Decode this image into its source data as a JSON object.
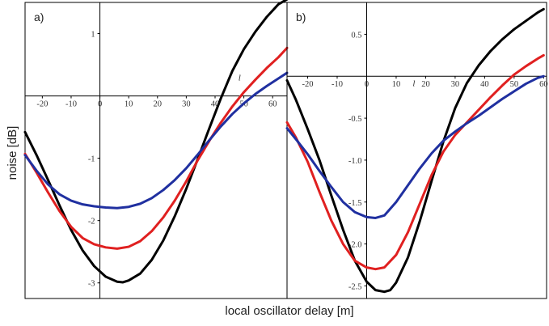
{
  "figure": {
    "ylabel": "noise [dB]",
    "xlabel": "local oscillator delay [m]"
  },
  "chart_data": [
    {
      "type": "line",
      "panel_label": "a)",
      "axis_variable": "l",
      "xlim": [
        -26,
        65
      ],
      "ylim": [
        -3.25,
        1.5
      ],
      "xticks": [
        -20,
        -10,
        0,
        10,
        20,
        30,
        40,
        50,
        60
      ],
      "xtick_labels": [
        "-20",
        "-10",
        "0",
        "10",
        "20",
        "30",
        "40",
        "50",
        "60"
      ],
      "yticks": [
        1,
        -1,
        -2,
        -3
      ],
      "ytick_labels": [
        "1",
        "-1",
        "-2",
        "-3"
      ],
      "grid": false,
      "series": [
        {
          "color": "#000000",
          "x": [
            -26,
            -22,
            -18,
            -14,
            -10,
            -6,
            -2,
            2,
            6,
            8,
            10,
            14,
            18,
            22,
            26,
            30,
            34,
            38,
            42,
            46,
            50,
            54,
            58,
            62,
            65
          ],
          "y": [
            -0.58,
            -0.95,
            -1.35,
            -1.76,
            -2.15,
            -2.48,
            -2.73,
            -2.9,
            -2.98,
            -2.99,
            -2.96,
            -2.85,
            -2.63,
            -2.32,
            -1.93,
            -1.49,
            -1.01,
            -0.52,
            -0.04,
            0.4,
            0.75,
            1.03,
            1.27,
            1.47,
            1.55
          ]
        },
        {
          "color": "#e02020",
          "x": [
            -26,
            -22,
            -18,
            -14,
            -10,
            -6,
            -2,
            2,
            6,
            10,
            14,
            18,
            22,
            26,
            30,
            34,
            38,
            42,
            46,
            50,
            54,
            58,
            62,
            65
          ],
          "y": [
            -0.93,
            -1.23,
            -1.55,
            -1.85,
            -2.1,
            -2.28,
            -2.38,
            -2.43,
            -2.45,
            -2.42,
            -2.33,
            -2.17,
            -1.95,
            -1.68,
            -1.37,
            -1.03,
            -0.72,
            -0.43,
            -0.17,
            0.06,
            0.26,
            0.45,
            0.62,
            0.77
          ]
        },
        {
          "color": "#2030a0",
          "x": [
            -26,
            -22,
            -18,
            -14,
            -10,
            -6,
            -2,
            2,
            6,
            10,
            14,
            18,
            22,
            26,
            30,
            34,
            38,
            42,
            46,
            50,
            54,
            58,
            62,
            65
          ],
          "y": [
            -0.95,
            -1.2,
            -1.42,
            -1.58,
            -1.68,
            -1.74,
            -1.77,
            -1.79,
            -1.8,
            -1.78,
            -1.73,
            -1.64,
            -1.51,
            -1.35,
            -1.16,
            -0.94,
            -0.71,
            -0.49,
            -0.29,
            -0.12,
            0.03,
            0.16,
            0.28,
            0.37
          ]
        }
      ]
    },
    {
      "type": "line",
      "panel_label": "b)",
      "axis_variable": "l",
      "xlim": [
        -27,
        61
      ],
      "ylim": [
        -2.65,
        0.88
      ],
      "xticks": [
        -20,
        -10,
        0,
        10,
        20,
        30,
        40,
        50,
        60
      ],
      "xtick_labels": [
        "-20",
        "-10",
        "0",
        "10",
        "20",
        "30",
        "40",
        "50",
        "60"
      ],
      "yticks": [
        0.5,
        -0.5,
        -1.0,
        -1.5,
        -2.0,
        -2.5
      ],
      "ytick_labels": [
        "0.5",
        "-0.5",
        "-1.0",
        "-1.5",
        "-2.0",
        "-2.5"
      ],
      "grid": false,
      "series": [
        {
          "color": "#000000",
          "x": [
            -27,
            -24,
            -20,
            -16,
            -12,
            -8,
            -4,
            0,
            3,
            6,
            8,
            10,
            14,
            18,
            22,
            26,
            30,
            34,
            38,
            42,
            46,
            50,
            54,
            58,
            60
          ],
          "y": [
            -0.05,
            -0.28,
            -0.63,
            -1.0,
            -1.42,
            -1.83,
            -2.2,
            -2.45,
            -2.55,
            -2.57,
            -2.55,
            -2.46,
            -2.16,
            -1.73,
            -1.25,
            -0.78,
            -0.38,
            -0.08,
            0.13,
            0.3,
            0.44,
            0.56,
            0.66,
            0.76,
            0.8
          ]
        },
        {
          "color": "#e02020",
          "x": [
            -27,
            -24,
            -20,
            -16,
            -12,
            -8,
            -4,
            0,
            3,
            6,
            10,
            14,
            18,
            22,
            26,
            30,
            34,
            38,
            42,
            46,
            50,
            54,
            58,
            60
          ],
          "y": [
            -0.55,
            -0.73,
            -1.02,
            -1.38,
            -1.72,
            -2.0,
            -2.2,
            -2.28,
            -2.3,
            -2.28,
            -2.13,
            -1.86,
            -1.52,
            -1.18,
            -0.9,
            -0.7,
            -0.55,
            -0.4,
            -0.25,
            -0.11,
            0.02,
            0.12,
            0.21,
            0.25
          ]
        },
        {
          "color": "#2030a0",
          "x": [
            -27,
            -24,
            -20,
            -16,
            -12,
            -8,
            -4,
            0,
            3,
            6,
            10,
            14,
            18,
            22,
            26,
            30,
            34,
            38,
            42,
            46,
            50,
            54,
            58,
            60
          ],
          "y": [
            -0.62,
            -0.75,
            -0.93,
            -1.13,
            -1.32,
            -1.5,
            -1.62,
            -1.68,
            -1.69,
            -1.66,
            -1.5,
            -1.3,
            -1.1,
            -0.92,
            -0.77,
            -0.66,
            -0.56,
            -0.47,
            -0.37,
            -0.27,
            -0.18,
            -0.09,
            -0.02,
            0.0
          ]
        }
      ]
    }
  ]
}
